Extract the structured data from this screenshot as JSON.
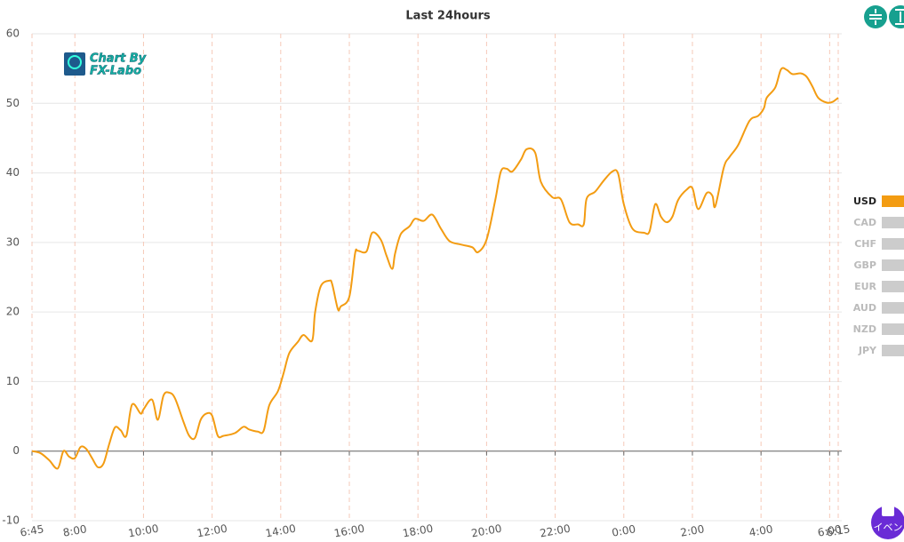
{
  "chart_data": {
    "type": "line",
    "title": "Last 24hours",
    "xlim": [
      0,
      1410
    ],
    "xticks": [
      {
        "value": 0,
        "label": "6:45"
      },
      {
        "value": 75,
        "label": "8:00"
      },
      {
        "value": 195,
        "label": "10:00"
      },
      {
        "value": 315,
        "label": "12:00"
      },
      {
        "value": 435,
        "label": "14:00"
      },
      {
        "value": 555,
        "label": "16:00"
      },
      {
        "value": 675,
        "label": "18:00"
      },
      {
        "value": 795,
        "label": "20:00"
      },
      {
        "value": 915,
        "label": "22:00"
      },
      {
        "value": 1035,
        "label": "0:00"
      },
      {
        "value": 1155,
        "label": "2:00"
      },
      {
        "value": 1275,
        "label": "4:00"
      },
      {
        "value": 1395,
        "label": "6:00"
      },
      {
        "value": 1410,
        "label": "6:15"
      }
    ],
    "ylim": [
      -10,
      60
    ],
    "yticks": [
      -10,
      0,
      10,
      20,
      30,
      40,
      50,
      60
    ],
    "grid": true,
    "x": [
      0,
      15,
      30,
      45,
      55,
      65,
      75,
      85,
      95,
      105,
      115,
      125,
      135,
      145,
      155,
      165,
      175,
      190,
      195,
      210,
      220,
      230,
      240,
      250,
      265,
      275,
      285,
      295,
      305,
      315,
      325,
      335,
      355,
      370,
      380,
      395,
      405,
      415,
      430,
      440,
      450,
      465,
      475,
      490,
      495,
      505,
      520,
      525,
      535,
      540,
      555,
      565,
      570,
      585,
      595,
      610,
      620,
      630,
      635,
      645,
      660,
      670,
      685,
      700,
      715,
      730,
      750,
      770,
      780,
      795,
      810,
      820,
      830,
      840,
      855,
      865,
      880,
      890,
      910,
      925,
      940,
      955,
      965,
      970,
      985,
      1000,
      1015,
      1025,
      1035,
      1050,
      1070,
      1080,
      1090,
      1100,
      1110,
      1120,
      1130,
      1145,
      1155,
      1165,
      1180,
      1190,
      1195,
      1210,
      1220,
      1235,
      1255,
      1270,
      1280,
      1285,
      1300,
      1310,
      1320,
      1330,
      1345,
      1355,
      1365,
      1375,
      1390,
      1400,
      1410
    ],
    "series": [
      {
        "name": "USD",
        "color": "#f39c12",
        "values": [
          0,
          -0.3,
          -1.3,
          -2.5,
          0,
          -0.8,
          -1,
          0.6,
          0.3,
          -1,
          -2.3,
          -1.8,
          1,
          3.4,
          3,
          2.2,
          6.7,
          5.4,
          6,
          7.4,
          4.5,
          8,
          8.4,
          7.6,
          4.2,
          2.2,
          1.9,
          4.5,
          5.4,
          5.1,
          2.2,
          2.2,
          2.6,
          3.5,
          3.1,
          2.8,
          2.9,
          6.6,
          8.6,
          11.2,
          14.1,
          15.7,
          16.7,
          15.9,
          19.9,
          23.7,
          24.5,
          24,
          20.4,
          20.8,
          22.2,
          28.4,
          28.8,
          28.7,
          31.4,
          30.4,
          28.1,
          26.2,
          28.4,
          31.2,
          32.3,
          33.4,
          33.1,
          34,
          32,
          30.2,
          29.7,
          29.3,
          28.6,
          30.4,
          36,
          40.2,
          40.6,
          40.2,
          41.9,
          43.4,
          42.9,
          38.7,
          36.5,
          36.2,
          32.9,
          32.6,
          32.6,
          36.3,
          37.3,
          38.9,
          40.2,
          39.9,
          35.5,
          32,
          31.4,
          31.6,
          35.5,
          33.7,
          32.9,
          33.7,
          36.1,
          37.6,
          37.8,
          34.8,
          37.1,
          36.7,
          35.2,
          40.8,
          42.3,
          44,
          47.5,
          48.2,
          49.3,
          50.8,
          52.3,
          54.9,
          54.8,
          54.2,
          54.3,
          53.8,
          52.4,
          50.8,
          50.1,
          50.2,
          50.8
        ]
      }
    ],
    "inactive_series": [
      {
        "name": "CAD",
        "color": "#cccccc"
      },
      {
        "name": "CHF",
        "color": "#cccccc"
      },
      {
        "name": "GBP",
        "color": "#cccccc"
      },
      {
        "name": "EUR",
        "color": "#cccccc"
      },
      {
        "name": "AUD",
        "color": "#cccccc"
      },
      {
        "name": "NZD",
        "color": "#cccccc"
      },
      {
        "name": "JPY",
        "color": "#cccccc"
      }
    ],
    "legend": "right",
    "logo": [
      "Chart By",
      "FX-Labo"
    ]
  },
  "ui": {
    "event_button": "イベン"
  }
}
